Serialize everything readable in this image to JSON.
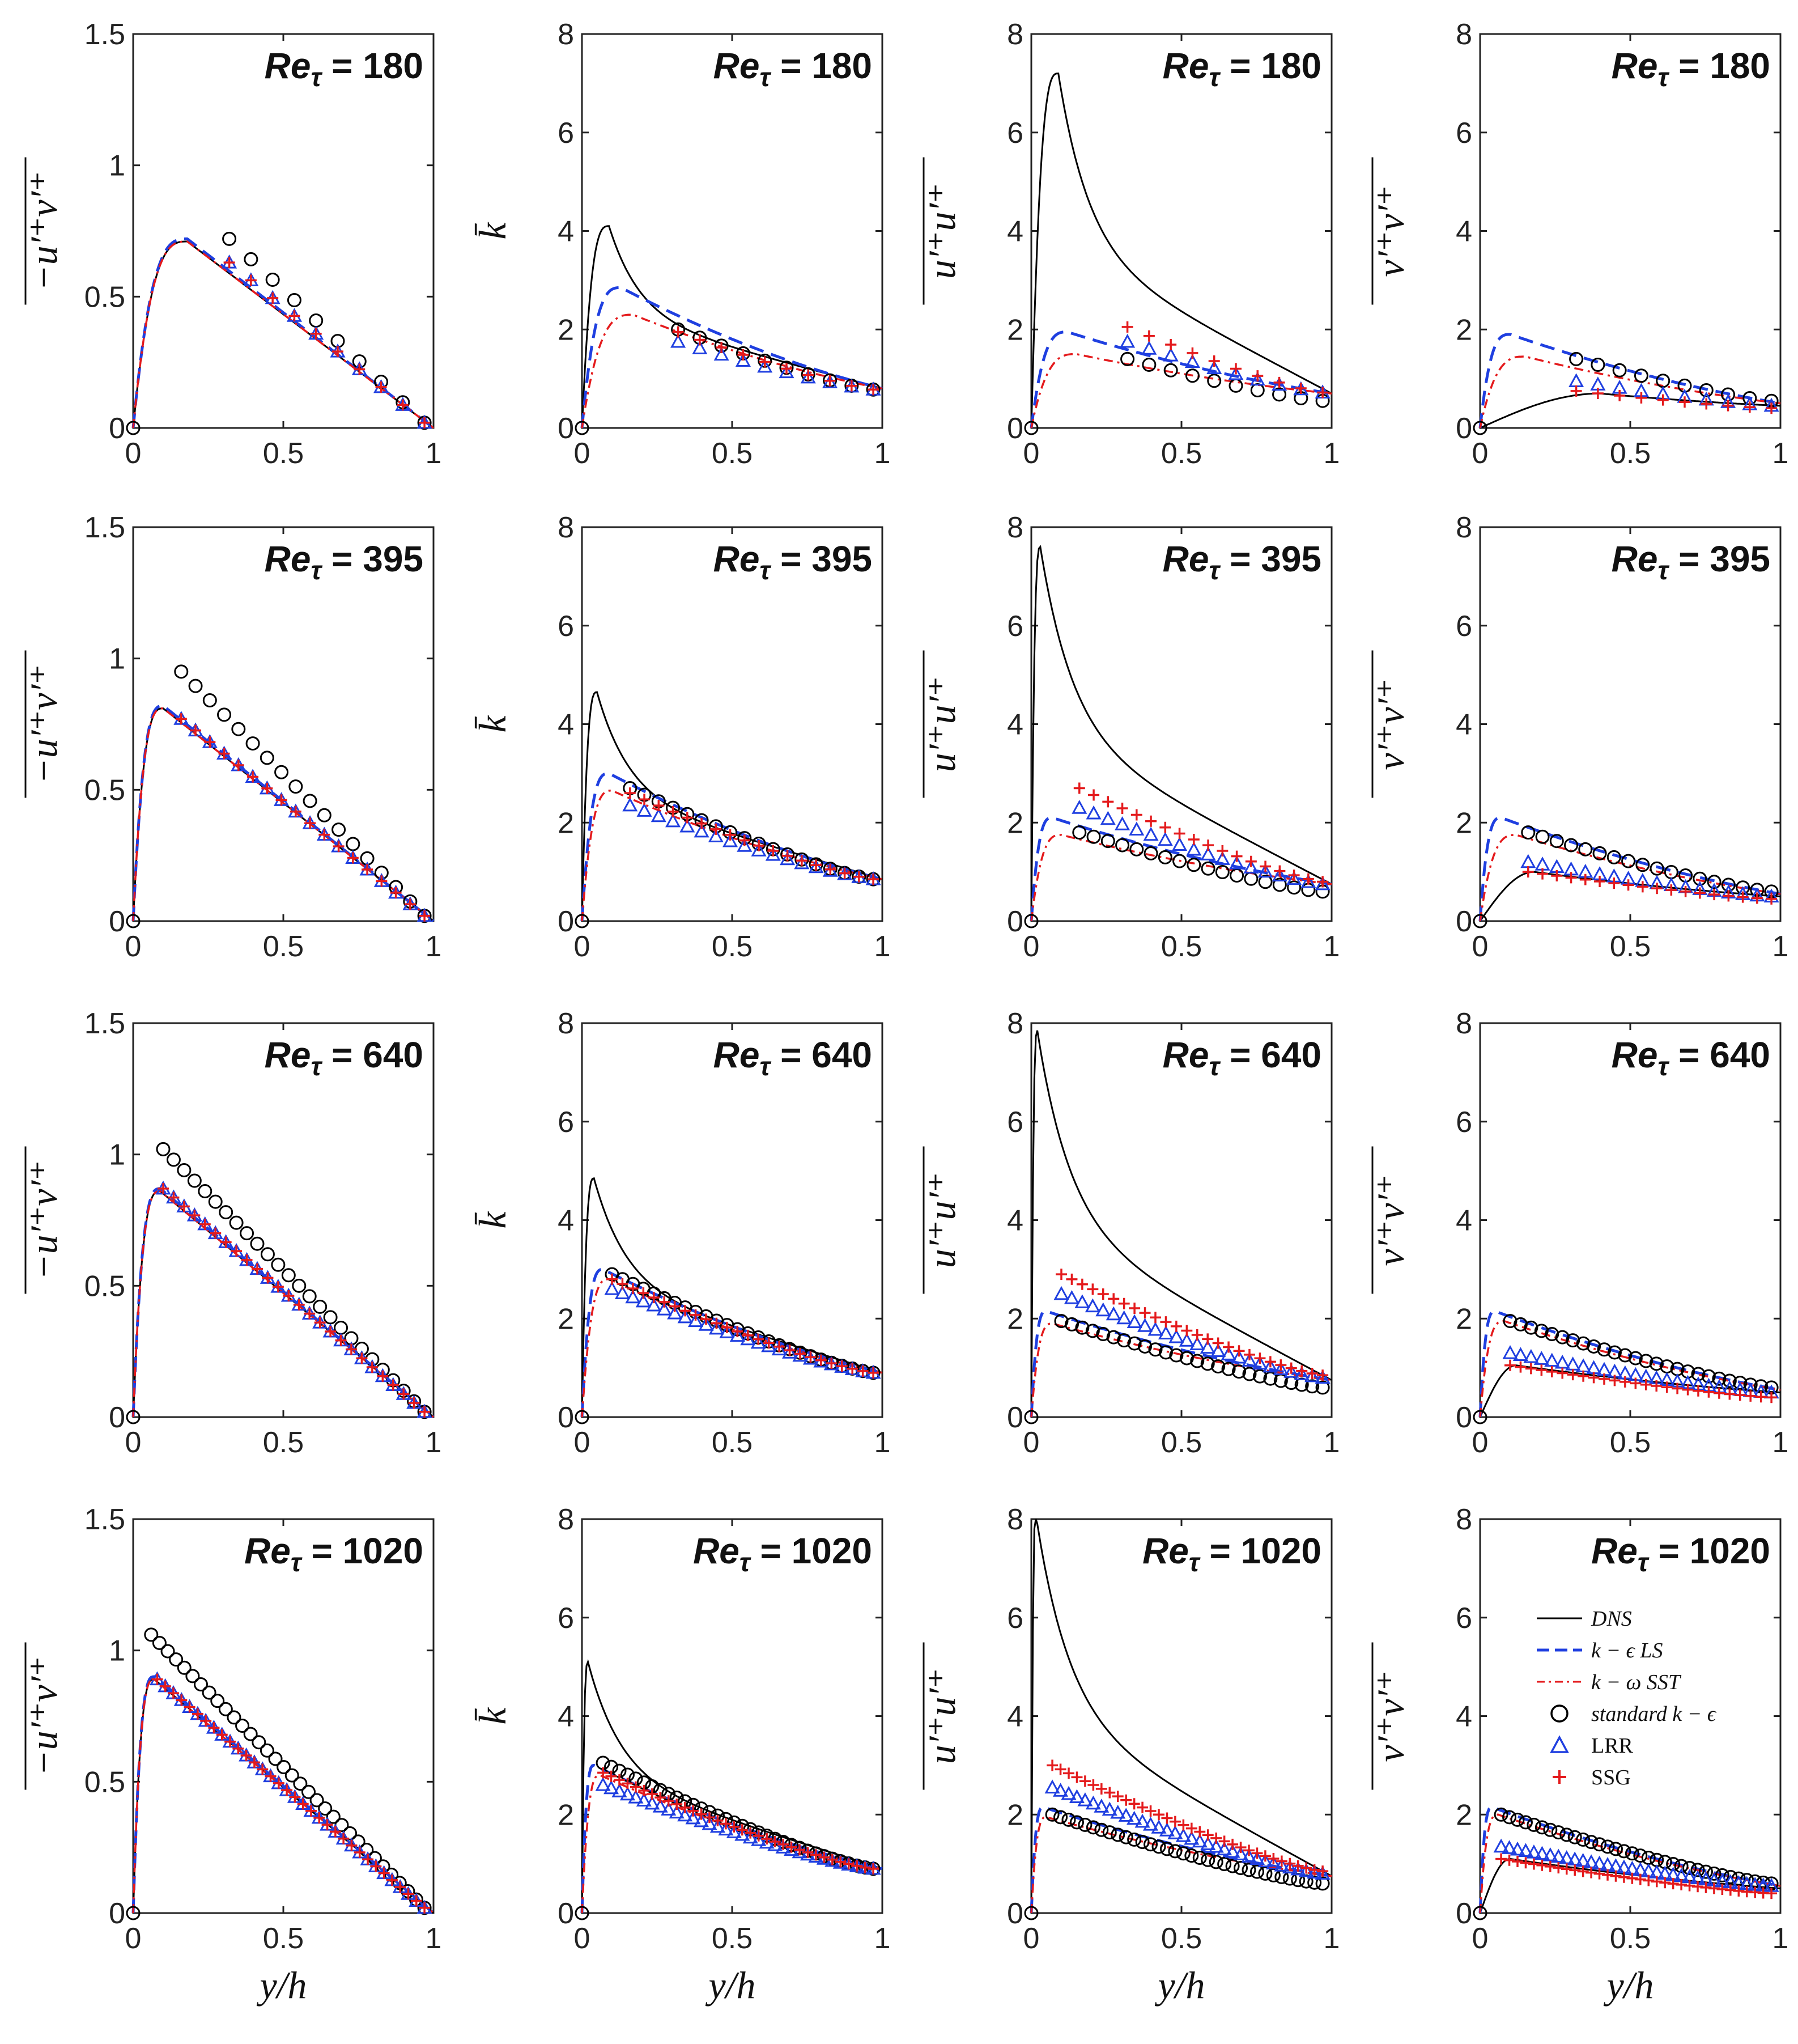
{
  "figure": {
    "rows_re": [
      180,
      395,
      640,
      1020
    ],
    "re_label_prefix": "Re",
    "re_label_sub": "τ",
    "re_label_eq": " = ",
    "xlabel": "y/h",
    "xticks": [
      "0",
      "0.5",
      "1"
    ],
    "columns": [
      {
        "quantity": "uv",
        "ylabel": "−u′⁺v′⁺",
        "ylim": [
          0,
          1.5
        ],
        "yticks": [
          "0",
          "0.5",
          "1",
          "1.5"
        ]
      },
      {
        "quantity": "k",
        "ylabel": "k̄",
        "ylim": [
          0,
          8
        ],
        "yticks": [
          "0",
          "2",
          "4",
          "6",
          "8"
        ]
      },
      {
        "quantity": "uu",
        "ylabel": "u′⁺u′⁺",
        "ylim": [
          0,
          8
        ],
        "yticks": [
          "0",
          "2",
          "4",
          "6",
          "8"
        ]
      },
      {
        "quantity": "vv",
        "ylabel": "v′⁺v′⁺",
        "ylim": [
          0,
          8
        ],
        "yticks": [
          "0",
          "2",
          "4",
          "6",
          "8"
        ]
      }
    ],
    "legend": {
      "placement": "bottom-right panel, upper right",
      "entries": [
        {
          "label": "DNS",
          "style": "solid",
          "color": "#000000"
        },
        {
          "label": "k − ϵ LS",
          "style": "dashed",
          "color": "#1f3fe0"
        },
        {
          "label": "k − ω SST",
          "style": "dashdot",
          "color": "#e41a1c"
        },
        {
          "label": "standard k − ϵ",
          "style": "circle",
          "color": "#000000"
        },
        {
          "label": "LRR",
          "style": "triangle",
          "color": "#1f3fe0"
        },
        {
          "label": "SSG",
          "style": "plus",
          "color": "#e41a1c"
        }
      ]
    }
  },
  "chart_data": {
    "type": "line",
    "grid": false,
    "x_range": [
      0,
      1
    ],
    "note_markers": "marker series sampled on y/h from first marker to ~0.97",
    "panels": [
      {
        "re": 180,
        "col": "uv",
        "DNS": {
          "peak_x": 0.18,
          "peak_y": 0.71,
          "end_y": 0.0
        },
        "LS": {
          "peak_x": 0.18,
          "peak_y": 0.72,
          "end_y": 0.0
        },
        "SST": {
          "peak_x": 0.18,
          "peak_y": 0.71,
          "end_y": 0.0
        },
        "SKE": {
          "x0": 0.32,
          "y0": 0.72,
          "y1": 0.02
        },
        "LRR": {
          "x0": 0.32,
          "y0": 0.63,
          "y1": 0.02
        },
        "SSG": {
          "x0": 0.32,
          "y0": 0.63,
          "y1": 0.02
        }
      },
      {
        "re": 180,
        "col": "k",
        "DNS": {
          "peak_x": 0.09,
          "peak_y": 4.1,
          "end_y": 0.8
        },
        "LS": {
          "peak_x": 0.13,
          "peak_y": 2.85,
          "end_y": 0.8
        },
        "SST": {
          "peak_x": 0.17,
          "peak_y": 2.3,
          "end_y": 0.8
        },
        "SKE": {
          "x0": 0.32,
          "y0": 2.0,
          "y1": 0.78
        },
        "LRR": {
          "x0": 0.32,
          "y0": 1.75,
          "y1": 0.78
        },
        "SSG": {
          "x0": 0.32,
          "y0": 1.95,
          "y1": 0.78
        }
      },
      {
        "re": 180,
        "col": "uu",
        "DNS": {
          "peak_x": 0.09,
          "peak_y": 7.2,
          "end_y": 0.7
        },
        "LS": {
          "peak_x": 0.12,
          "peak_y": 1.95,
          "end_y": 0.7
        },
        "SST": {
          "peak_x": 0.15,
          "peak_y": 1.5,
          "end_y": 0.7
        },
        "SKE": {
          "x0": 0.32,
          "y0": 1.4,
          "y1": 0.55
        },
        "LRR": {
          "x0": 0.32,
          "y0": 1.75,
          "y1": 0.72
        },
        "SSG": {
          "x0": 0.32,
          "y0": 2.05,
          "y1": 0.72
        }
      },
      {
        "re": 180,
        "col": "vv",
        "DNS": {
          "peak_x": 0.4,
          "peak_y": 0.7,
          "end_y": 0.45
        },
        "LS": {
          "peak_x": 0.1,
          "peak_y": 1.9,
          "end_y": 0.5
        },
        "SST": {
          "peak_x": 0.15,
          "peak_y": 1.45,
          "end_y": 0.5
        },
        "SKE": {
          "x0": 0.32,
          "y0": 1.4,
          "y1": 0.55
        },
        "LRR": {
          "x0": 0.32,
          "y0": 0.95,
          "y1": 0.45
        },
        "SSG": {
          "x0": 0.32,
          "y0": 0.75,
          "y1": 0.4
        }
      },
      {
        "re": 395,
        "col": "uv",
        "DNS": {
          "peak_x": 0.1,
          "peak_y": 0.81,
          "end_y": 0.0
        },
        "LS": {
          "peak_x": 0.1,
          "peak_y": 0.82,
          "end_y": 0.0
        },
        "SST": {
          "peak_x": 0.1,
          "peak_y": 0.81,
          "end_y": 0.0
        },
        "SKE": {
          "x0": 0.16,
          "y0": 0.95,
          "y1": 0.02
        },
        "LRR": {
          "x0": 0.16,
          "y0": 0.77,
          "y1": 0.02
        },
        "SSG": {
          "x0": 0.16,
          "y0": 0.77,
          "y1": 0.02
        }
      },
      {
        "re": 395,
        "col": "k",
        "DNS": {
          "peak_x": 0.05,
          "peak_y": 4.65,
          "end_y": 0.85
        },
        "LS": {
          "peak_x": 0.09,
          "peak_y": 3.0,
          "end_y": 0.85
        },
        "SST": {
          "peak_x": 0.1,
          "peak_y": 2.65,
          "end_y": 0.85
        },
        "SKE": {
          "x0": 0.16,
          "y0": 2.7,
          "y1": 0.85
        },
        "LRR": {
          "x0": 0.16,
          "y0": 2.35,
          "y1": 0.85
        },
        "SSG": {
          "x0": 0.16,
          "y0": 2.6,
          "y1": 0.85
        }
      },
      {
        "re": 395,
        "col": "uu",
        "DNS": {
          "peak_x": 0.03,
          "peak_y": 7.6,
          "end_y": 0.75
        },
        "LS": {
          "peak_x": 0.07,
          "peak_y": 2.1,
          "end_y": 0.75
        },
        "SST": {
          "peak_x": 0.1,
          "peak_y": 1.75,
          "end_y": 0.75
        },
        "SKE": {
          "x0": 0.16,
          "y0": 1.8,
          "y1": 0.6
        },
        "LRR": {
          "x0": 0.16,
          "y0": 2.3,
          "y1": 0.75
        },
        "SSG": {
          "x0": 0.16,
          "y0": 2.7,
          "y1": 0.8
        }
      },
      {
        "re": 395,
        "col": "vv",
        "DNS": {
          "peak_x": 0.18,
          "peak_y": 1.0,
          "end_y": 0.5
        },
        "LS": {
          "peak_x": 0.07,
          "peak_y": 2.1,
          "end_y": 0.55
        },
        "SST": {
          "peak_x": 0.12,
          "peak_y": 1.75,
          "end_y": 0.55
        },
        "SKE": {
          "x0": 0.16,
          "y0": 1.8,
          "y1": 0.6
        },
        "LRR": {
          "x0": 0.16,
          "y0": 1.2,
          "y1": 0.5
        },
        "SSG": {
          "x0": 0.16,
          "y0": 1.0,
          "y1": 0.45
        }
      },
      {
        "re": 640,
        "col": "uv",
        "DNS": {
          "peak_x": 0.09,
          "peak_y": 0.86,
          "end_y": 0.0
        },
        "LS": {
          "peak_x": 0.09,
          "peak_y": 0.87,
          "end_y": 0.0
        },
        "SST": {
          "peak_x": 0.09,
          "peak_y": 0.86,
          "end_y": 0.0
        },
        "SKE": {
          "x0": 0.1,
          "y0": 1.02,
          "y1": 0.02
        },
        "LRR": {
          "x0": 0.1,
          "y0": 0.87,
          "y1": 0.02
        },
        "SSG": {
          "x0": 0.1,
          "y0": 0.87,
          "y1": 0.02
        }
      },
      {
        "re": 640,
        "col": "k",
        "DNS": {
          "peak_x": 0.04,
          "peak_y": 4.85,
          "end_y": 0.9
        },
        "LS": {
          "peak_x": 0.07,
          "peak_y": 3.0,
          "end_y": 0.9
        },
        "SST": {
          "peak_x": 0.09,
          "peak_y": 2.8,
          "end_y": 0.9
        },
        "SKE": {
          "x0": 0.1,
          "y0": 2.9,
          "y1": 0.9
        },
        "LRR": {
          "x0": 0.1,
          "y0": 2.6,
          "y1": 0.9
        },
        "SSG": {
          "x0": 0.1,
          "y0": 2.8,
          "y1": 0.9
        }
      },
      {
        "re": 640,
        "col": "uu",
        "DNS": {
          "peak_x": 0.02,
          "peak_y": 7.85,
          "end_y": 0.75
        },
        "LS": {
          "peak_x": 0.05,
          "peak_y": 2.15,
          "end_y": 0.75
        },
        "SST": {
          "peak_x": 0.07,
          "peak_y": 1.9,
          "end_y": 0.75
        },
        "SKE": {
          "x0": 0.1,
          "y0": 1.95,
          "y1": 0.6
        },
        "LRR": {
          "x0": 0.1,
          "y0": 2.5,
          "y1": 0.8
        },
        "SSG": {
          "x0": 0.1,
          "y0": 2.9,
          "y1": 0.85
        }
      },
      {
        "re": 640,
        "col": "vv",
        "DNS": {
          "peak_x": 0.12,
          "peak_y": 1.05,
          "end_y": 0.5
        },
        "LS": {
          "peak_x": 0.05,
          "peak_y": 2.15,
          "end_y": 0.55
        },
        "SST": {
          "peak_x": 0.08,
          "peak_y": 1.95,
          "end_y": 0.55
        },
        "SKE": {
          "x0": 0.1,
          "y0": 1.95,
          "y1": 0.6
        },
        "LRR": {
          "x0": 0.1,
          "y0": 1.3,
          "y1": 0.5
        },
        "SSG": {
          "x0": 0.1,
          "y0": 1.05,
          "y1": 0.4
        }
      },
      {
        "re": 1020,
        "col": "uv",
        "DNS": {
          "peak_x": 0.07,
          "peak_y": 0.89,
          "end_y": 0.0
        },
        "LS": {
          "peak_x": 0.07,
          "peak_y": 0.9,
          "end_y": 0.0
        },
        "SST": {
          "peak_x": 0.07,
          "peak_y": 0.89,
          "end_y": 0.0
        },
        "SKE": {
          "x0": 0.06,
          "y0": 1.06,
          "y1": 0.02
        },
        "LRR": {
          "x0": 0.08,
          "y0": 0.89,
          "y1": 0.02
        },
        "SSG": {
          "x0": 0.08,
          "y0": 0.89,
          "y1": 0.02
        }
      },
      {
        "re": 1020,
        "col": "k",
        "DNS": {
          "peak_x": 0.02,
          "peak_y": 5.1,
          "end_y": 0.9
        },
        "LS": {
          "peak_x": 0.04,
          "peak_y": 3.0,
          "end_y": 0.9
        },
        "SST": {
          "peak_x": 0.06,
          "peak_y": 2.8,
          "end_y": 0.9
        },
        "SKE": {
          "x0": 0.07,
          "y0": 3.05,
          "y1": 0.9
        },
        "LRR": {
          "x0": 0.07,
          "y0": 2.6,
          "y1": 0.9
        },
        "SSG": {
          "x0": 0.07,
          "y0": 2.85,
          "y1": 0.9
        }
      },
      {
        "re": 1020,
        "col": "uu",
        "DNS": {
          "peak_x": 0.015,
          "peak_y": 8.1,
          "end_y": 0.75
        },
        "LS": {
          "peak_x": 0.04,
          "peak_y": 2.15,
          "end_y": 0.75
        },
        "SST": {
          "peak_x": 0.05,
          "peak_y": 1.95,
          "end_y": 0.75
        },
        "SKE": {
          "x0": 0.07,
          "y0": 2.0,
          "y1": 0.6
        },
        "LRR": {
          "x0": 0.07,
          "y0": 2.55,
          "y1": 0.8
        },
        "SSG": {
          "x0": 0.07,
          "y0": 3.0,
          "y1": 0.85
        }
      },
      {
        "re": 1020,
        "col": "vv",
        "DNS": {
          "peak_x": 0.1,
          "peak_y": 1.1,
          "end_y": 0.5
        },
        "LS": {
          "peak_x": 0.04,
          "peak_y": 2.15,
          "end_y": 0.55
        },
        "SST": {
          "peak_x": 0.06,
          "peak_y": 2.0,
          "end_y": 0.55
        },
        "SKE": {
          "x0": 0.07,
          "y0": 2.0,
          "y1": 0.6
        },
        "LRR": {
          "x0": 0.07,
          "y0": 1.35,
          "y1": 0.55
        },
        "SSG": {
          "x0": 0.07,
          "y0": 1.1,
          "y1": 0.4
        }
      }
    ]
  }
}
